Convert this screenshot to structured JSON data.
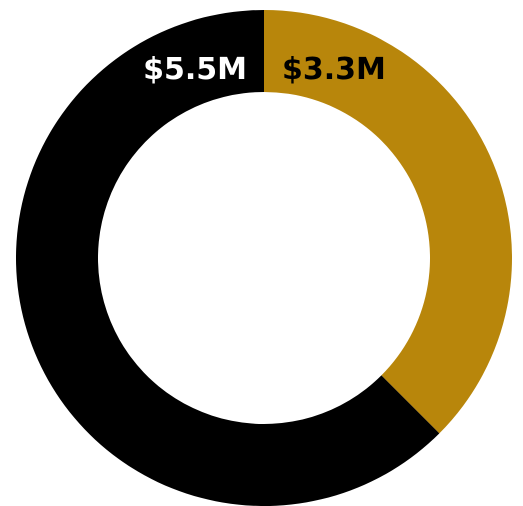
{
  "chart_data": {
    "type": "pie",
    "donut": true,
    "start_angle_deg": 0,
    "direction": "clockwise",
    "slices": [
      {
        "label": "$3.3M",
        "value": 3.3,
        "color": "#B8860B",
        "label_color": "#000000"
      },
      {
        "label": "$5.5M",
        "value": 5.5,
        "color": "#000000",
        "label_color": "#ffffff"
      }
    ],
    "legend": "none"
  }
}
